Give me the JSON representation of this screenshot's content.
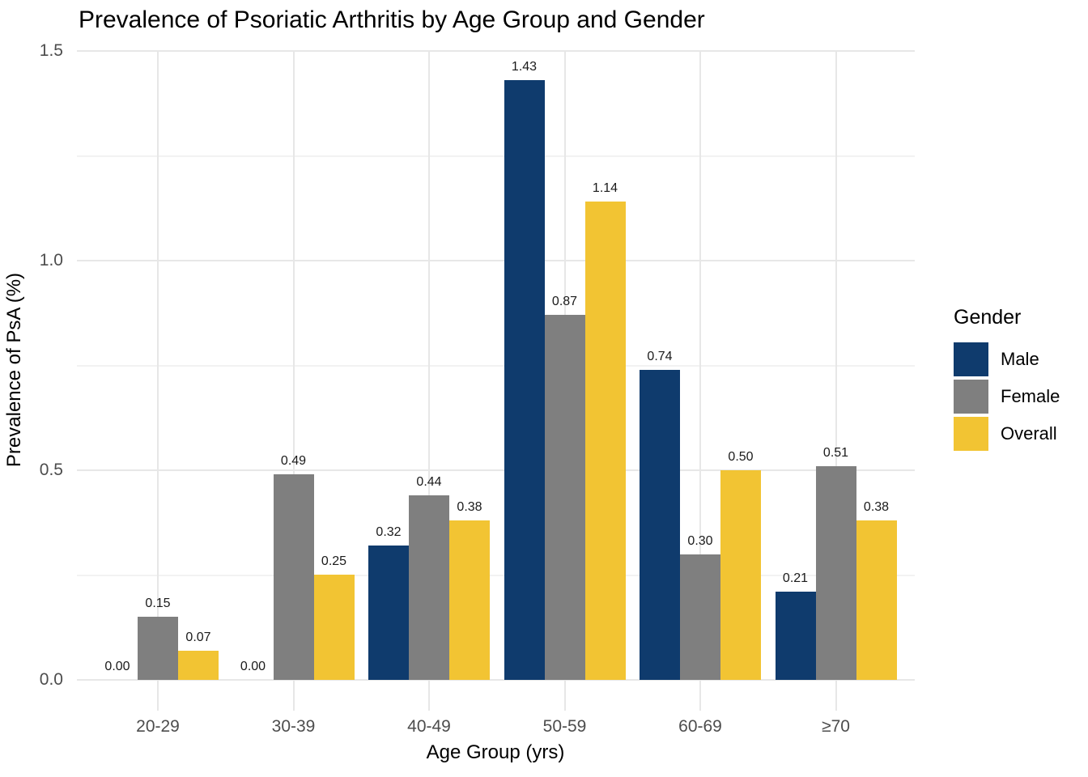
{
  "chart_data": {
    "type": "bar",
    "title": "Prevalence of Psoriatic Arthritis by Age Group and Gender",
    "xlabel": "Age Group (yrs)",
    "ylabel": "Prevalence of PsA (%)",
    "legend_title": "Gender",
    "legend_position": "right",
    "grid": true,
    "categories": [
      "20-29",
      "30-39",
      "40-49",
      "50-59",
      "60-69",
      "≥70"
    ],
    "series": [
      {
        "name": "Male",
        "color": "#0F3B6D",
        "values": [
          0.0,
          0.0,
          0.32,
          1.43,
          0.74,
          0.21
        ],
        "labels": [
          "0.00",
          "0.00",
          "0.32",
          "1.43",
          "0.74",
          "0.21"
        ]
      },
      {
        "name": "Female",
        "color": "#7F7F7F",
        "values": [
          0.15,
          0.49,
          0.44,
          0.87,
          0.3,
          0.51
        ],
        "labels": [
          "0.15",
          "0.49",
          "0.44",
          "0.87",
          "0.30",
          "0.51"
        ]
      },
      {
        "name": "Overall",
        "color": "#F2C433",
        "values": [
          0.07,
          0.25,
          0.38,
          1.14,
          0.5,
          0.38
        ],
        "labels": [
          "0.07",
          "0.25",
          "0.38",
          "1.14",
          "0.50",
          "0.38"
        ]
      }
    ],
    "ylim": [
      0,
      1.5
    ],
    "yticks": [
      0.0,
      0.5,
      1.0,
      1.5
    ],
    "ytick_labels": [
      "0.0",
      "0.5",
      "1.0",
      "1.5"
    ],
    "minor_yticks": [
      0.25,
      0.75,
      1.25
    ]
  }
}
